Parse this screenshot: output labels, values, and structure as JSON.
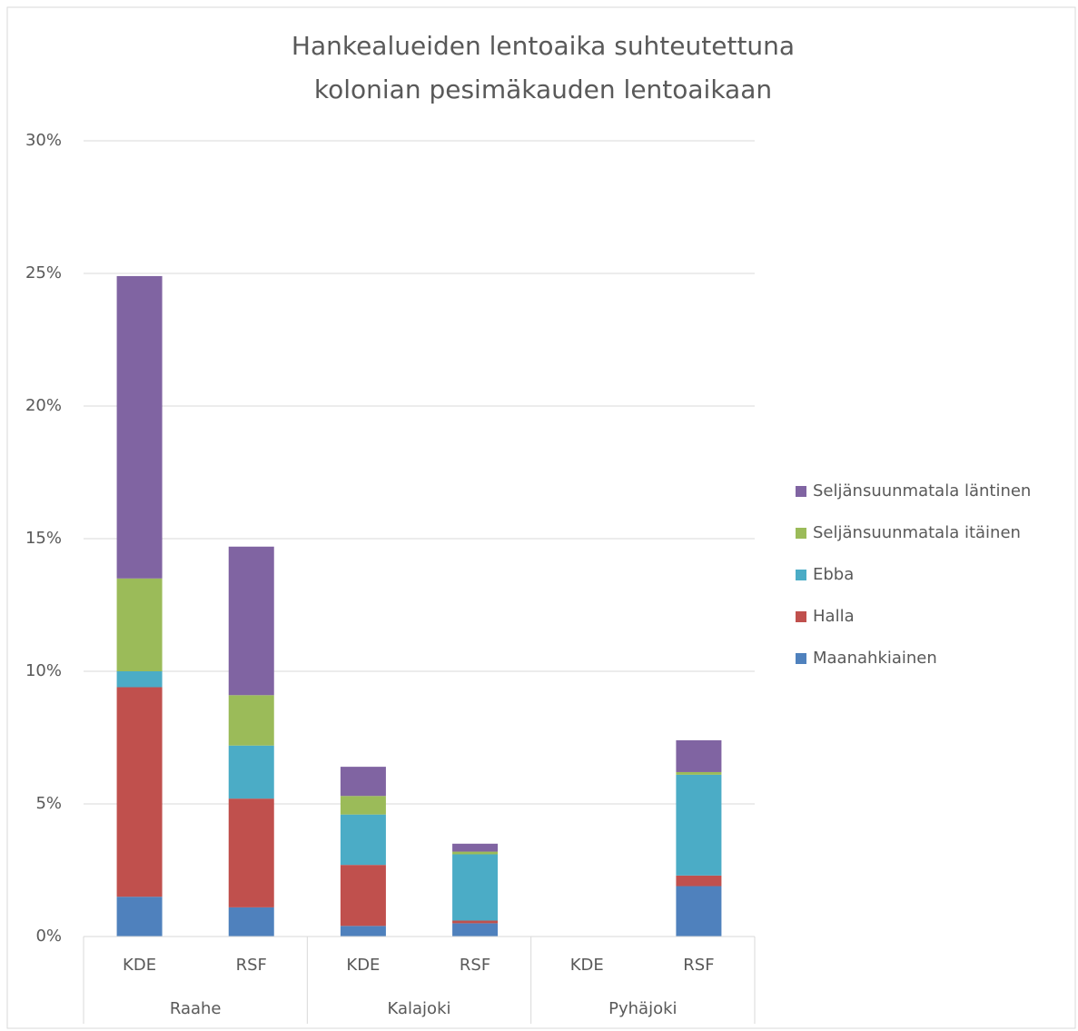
{
  "chart_data": {
    "type": "stacked_bar",
    "title": [
      "Hankealueiden lentoaika suhteutettuna",
      "kolonian pesimäkauden lentoaikaan"
    ],
    "categories": [
      "KDE",
      "RSF",
      "KDE",
      "RSF",
      "KDE",
      "RSF"
    ],
    "groups": [
      "Raahe",
      "Kalajoki",
      "Pyhäjoki"
    ],
    "series": [
      {
        "name": "Maanahkiainen",
        "color": "#4f81bd",
        "values": [
          1.5,
          1.1,
          0.4,
          0.5,
          0,
          1.9
        ]
      },
      {
        "name": "Halla",
        "color": "#c0504d",
        "values": [
          7.9,
          4.1,
          2.3,
          0.1,
          0,
          0.4
        ]
      },
      {
        "name": "Ebba",
        "color": "#4bacc6",
        "values": [
          0.6,
          2.0,
          1.9,
          2.5,
          0,
          3.8
        ]
      },
      {
        "name": "Seljänsuunmatala itäinen",
        "color": "#9bbb59",
        "values": [
          3.5,
          1.9,
          0.7,
          0.1,
          0,
          0.1
        ]
      },
      {
        "name": "Seljänsuunmatala läntinen",
        "color": "#8064a2",
        "values": [
          11.4,
          5.6,
          1.1,
          0.3,
          0,
          1.2
        ]
      }
    ],
    "ylim": [
      0,
      30
    ],
    "yticks": [
      {
        "value": 0,
        "label": "0%"
      },
      {
        "value": 5,
        "label": "5%"
      },
      {
        "value": 10,
        "label": "10%"
      },
      {
        "value": 15,
        "label": "15%"
      },
      {
        "value": 20,
        "label": "20%"
      },
      {
        "value": 25,
        "label": "25%"
      },
      {
        "value": 30,
        "label": "30%"
      }
    ],
    "grid": true,
    "legend": "right"
  }
}
